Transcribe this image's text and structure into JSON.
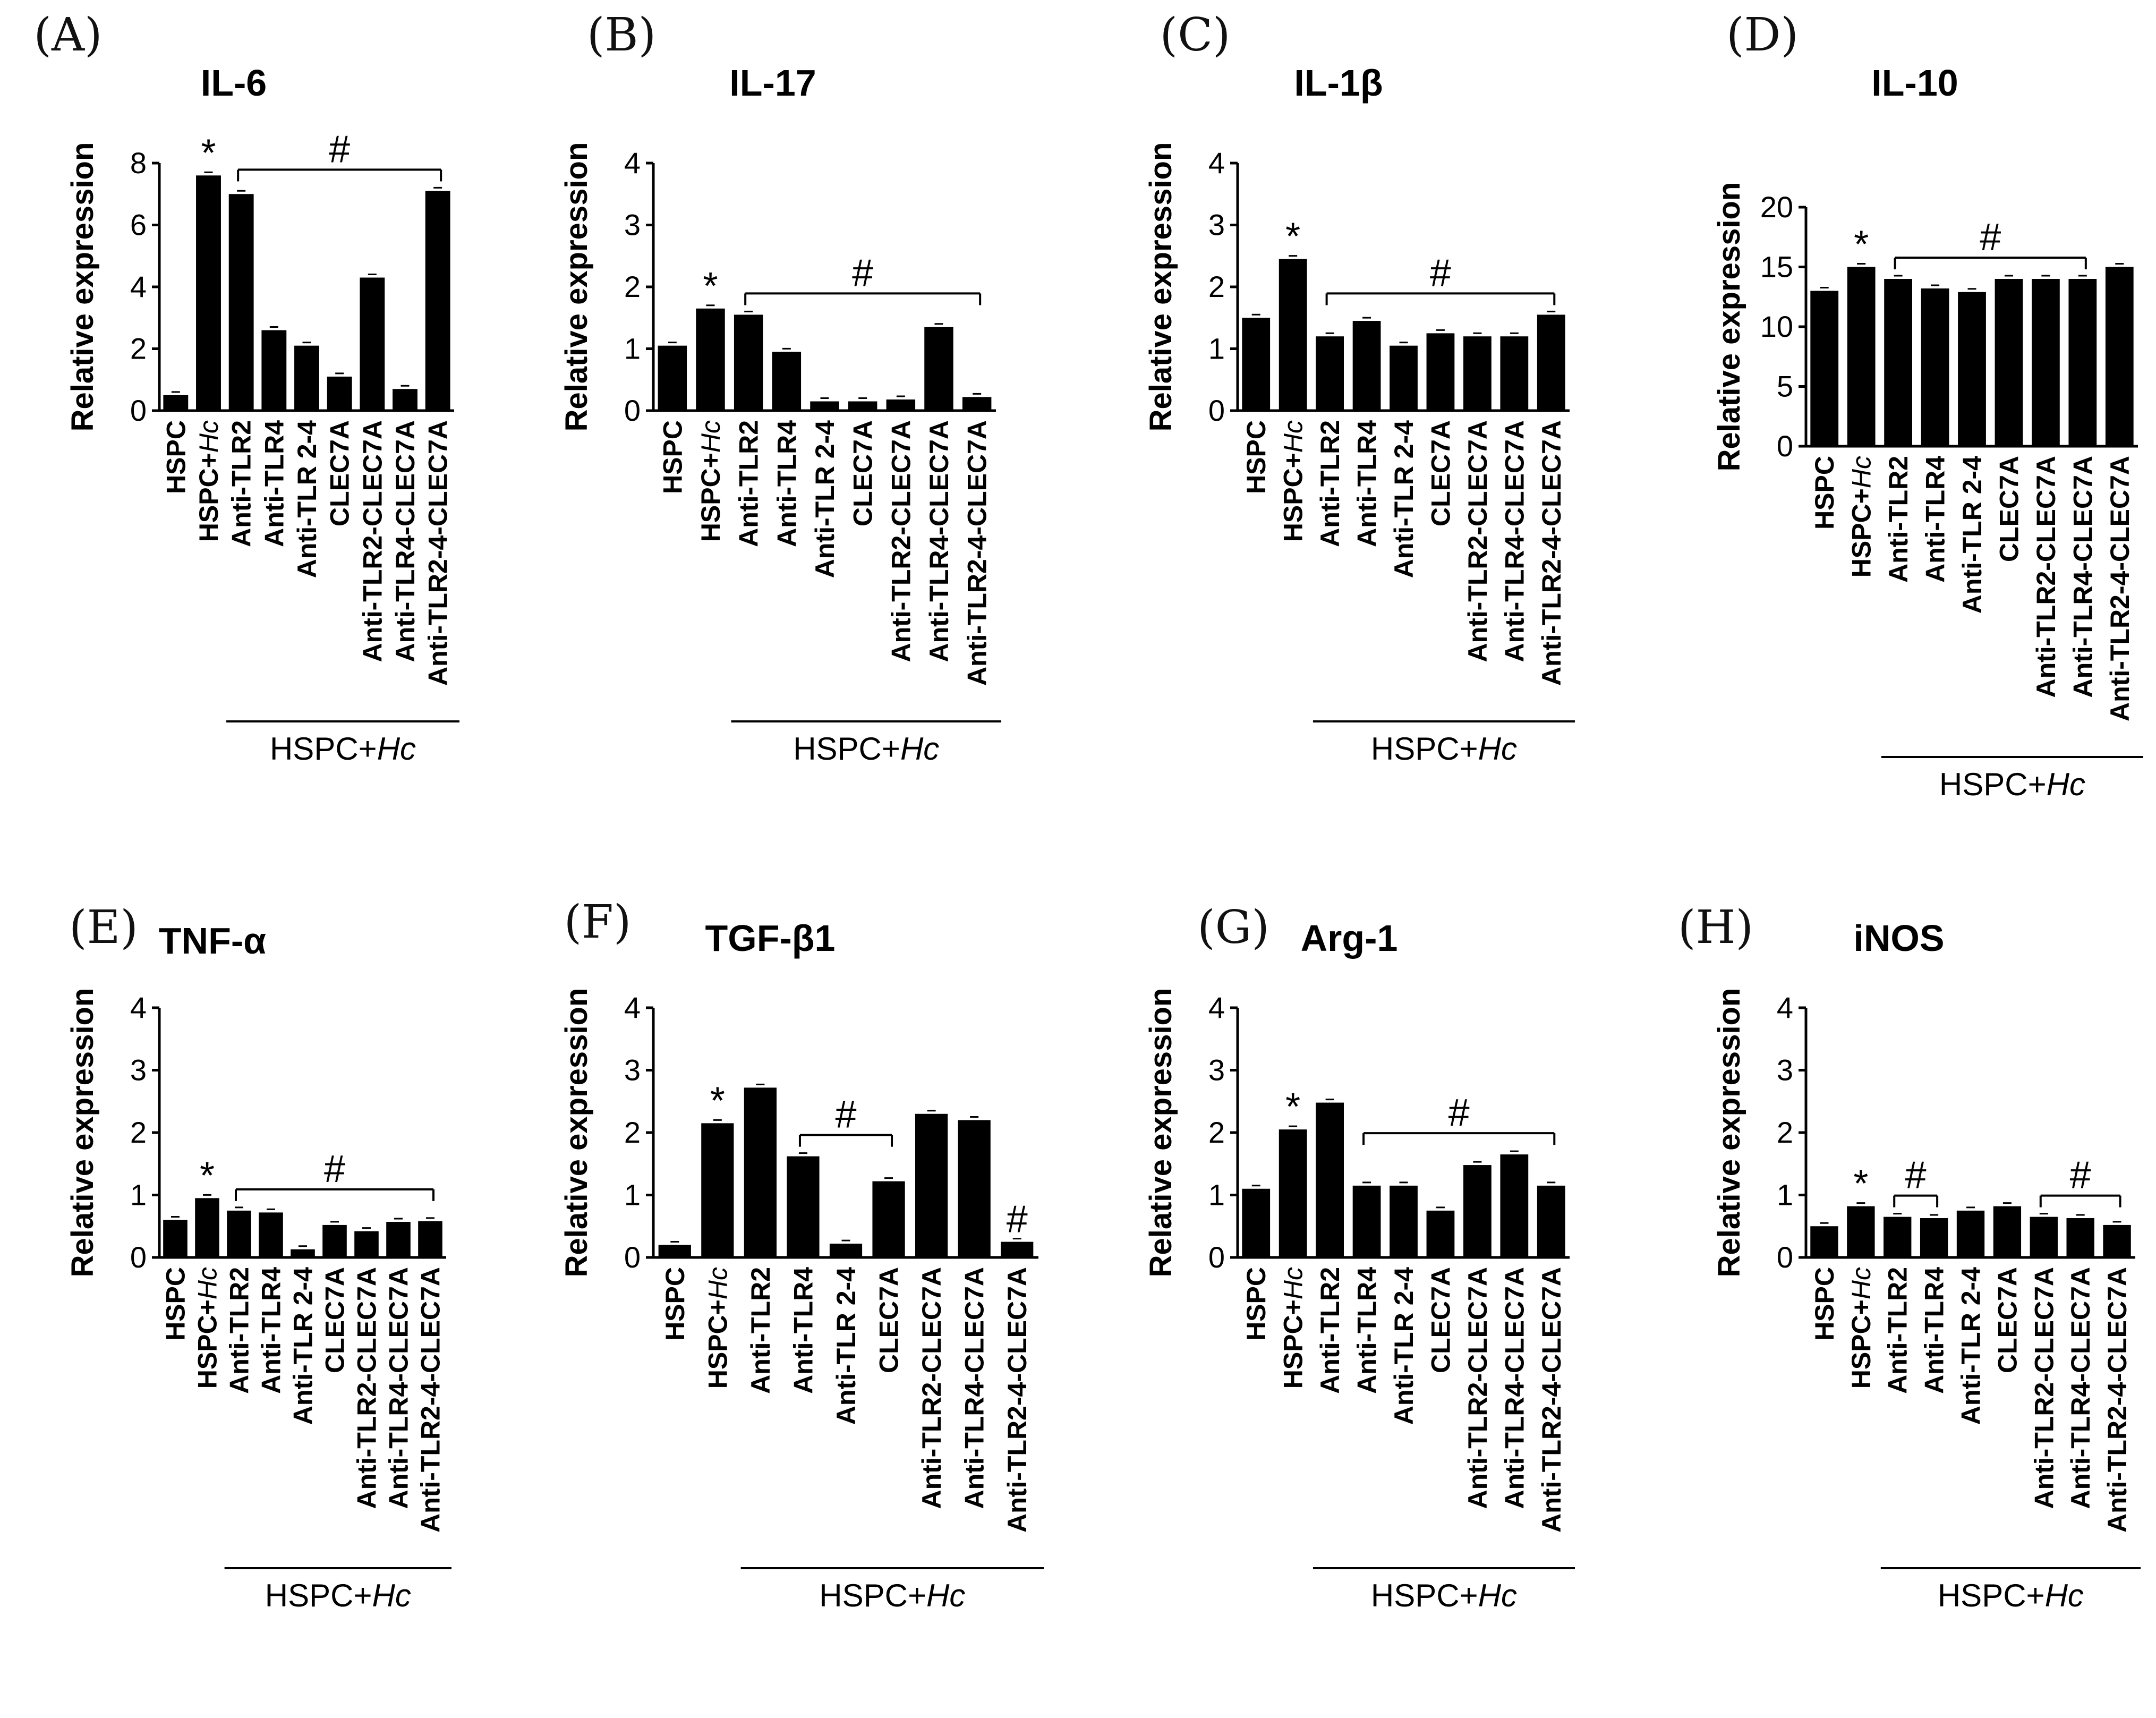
{
  "group_label": "HSPC+",
  "group_label_italic": "Hc",
  "marker_symbols": {
    "significant_vs_hspc": "*",
    "significant_vs_infected": "#"
  },
  "chart_data": [
    {
      "panel": "(A)",
      "type": "bar",
      "title": "IL-6",
      "ylabel": "Relative expression",
      "ylim": [
        0,
        8
      ],
      "yticks": [
        0,
        2,
        4,
        6,
        8
      ],
      "categories": [
        "HSPC",
        "HSPC+Hc",
        "Anti-TLR2",
        "Anti-TLR4",
        "Anti-TLR 2-4",
        "CLEC7A",
        "Anti-TLR2-CLEC7A",
        "Anti-TLR4-CLEC7A",
        "Anti-TLR2-4-CLEC7A"
      ],
      "values": [
        0.5,
        7.6,
        7.0,
        2.6,
        2.1,
        1.1,
        4.3,
        0.7,
        7.1
      ],
      "star_on": [
        1
      ],
      "hash_brackets": [
        {
          "from": 2,
          "to": 8
        }
      ],
      "hash_single": []
    },
    {
      "panel": "(B)",
      "type": "bar",
      "title": "IL-17",
      "ylabel": "Relative expression",
      "ylim": [
        0,
        4
      ],
      "yticks": [
        0,
        1,
        2,
        3,
        4
      ],
      "categories": [
        "HSPC",
        "HSPC+Hc",
        "Anti-TLR2",
        "Anti-TLR4",
        "Anti-TLR 2-4",
        "CLEC7A",
        "Anti-TLR2-CLEC7A",
        "Anti-TLR4-CLEC7A",
        "Anti-TLR2-4-CLEC7A"
      ],
      "values": [
        1.05,
        1.65,
        1.55,
        0.95,
        0.15,
        0.15,
        0.18,
        1.35,
        0.22
      ],
      "star_on": [
        1
      ],
      "hash_brackets": [
        {
          "from": 2,
          "to": 8
        }
      ],
      "hash_single": []
    },
    {
      "panel": "(C)",
      "type": "bar",
      "title": "IL-1β",
      "ylabel": "Relative expression",
      "ylim": [
        0,
        4
      ],
      "yticks": [
        0,
        1,
        2,
        3,
        4
      ],
      "categories": [
        "HSPC",
        "HSPC+Hc",
        "Anti-TLR2",
        "Anti-TLR4",
        "Anti-TLR 2-4",
        "CLEC7A",
        "Anti-TLR2-CLEC7A",
        "Anti-TLR4-CLEC7A",
        "Anti-TLR2-4-CLEC7A"
      ],
      "values": [
        1.5,
        2.45,
        1.2,
        1.45,
        1.05,
        1.25,
        1.2,
        1.2,
        1.55
      ],
      "star_on": [
        1
      ],
      "hash_brackets": [
        {
          "from": 2,
          "to": 8
        }
      ],
      "hash_single": []
    },
    {
      "panel": "(D)",
      "type": "bar",
      "title": "IL-10",
      "ylabel": "Relative expression",
      "ylim": [
        0,
        20
      ],
      "yticks": [
        0,
        5,
        10,
        15,
        20
      ],
      "categories": [
        "HSPC",
        "HSPC+Hc",
        "Anti-TLR2",
        "Anti-TLR4",
        "Anti-TLR 2-4",
        "CLEC7A",
        "Anti-TLR2-CLEC7A",
        "Anti-TLR4-CLEC7A",
        "Anti-TLR2-4-CLEC7A"
      ],
      "values": [
        13.0,
        15.0,
        14.0,
        13.2,
        12.9,
        14.0,
        14.0,
        14.0,
        15.0
      ],
      "star_on": [
        1
      ],
      "hash_brackets": [
        {
          "from": 2,
          "to": 7
        }
      ],
      "hash_single": []
    },
    {
      "panel": "(E)",
      "type": "bar",
      "title": "TNF-α",
      "ylabel": "Relative expression",
      "ylim": [
        0,
        4
      ],
      "yticks": [
        0,
        1,
        2,
        3,
        4
      ],
      "categories": [
        "HSPC",
        "HSPC+Hc",
        "Anti-TLR2",
        "Anti-TLR4",
        "Anti-TLR 2-4",
        "CLEC7A",
        "Anti-TLR2-CLEC7A",
        "Anti-TLR4-CLEC7A",
        "Anti-TLR2-4-CLEC7A"
      ],
      "values": [
        0.6,
        0.95,
        0.75,
        0.72,
        0.13,
        0.52,
        0.42,
        0.57,
        0.58
      ],
      "star_on": [
        1
      ],
      "hash_brackets": [
        {
          "from": 2,
          "to": 8
        }
      ],
      "hash_single": []
    },
    {
      "panel": "(F)",
      "type": "bar",
      "title": "TGF-β1",
      "ylabel": "Relative expression",
      "ylim": [
        0,
        4
      ],
      "yticks": [
        0,
        1,
        2,
        3,
        4
      ],
      "categories": [
        "HSPC",
        "HSPC+Hc",
        "Anti-TLR2",
        "Anti-TLR4",
        "Anti-TLR 2-4",
        "CLEC7A",
        "Anti-TLR2-CLEC7A",
        "Anti-TLR4-CLEC7A",
        "Anti-TLR2-4-CLEC7A"
      ],
      "values": [
        0.2,
        2.15,
        2.72,
        1.62,
        0.22,
        1.22,
        2.3,
        2.2,
        0.25
      ],
      "star_on": [
        1
      ],
      "hash_brackets": [
        {
          "from": 3,
          "to": 5
        }
      ],
      "hash_single": [
        8
      ]
    },
    {
      "panel": "(G)",
      "type": "bar",
      "title": "Arg-1",
      "ylabel": "Relative expression",
      "ylim": [
        0,
        4
      ],
      "yticks": [
        0,
        1,
        2,
        3,
        4
      ],
      "categories": [
        "HSPC",
        "HSPC+Hc",
        "Anti-TLR2",
        "Anti-TLR4",
        "Anti-TLR 2-4",
        "CLEC7A",
        "Anti-TLR2-CLEC7A",
        "Anti-TLR4-CLEC7A",
        "Anti-TLR2-4-CLEC7A"
      ],
      "values": [
        1.1,
        2.05,
        2.48,
        1.15,
        1.15,
        0.75,
        1.48,
        1.65,
        1.15
      ],
      "star_on": [
        1
      ],
      "hash_brackets": [
        {
          "from": 3,
          "to": 8
        }
      ],
      "hash_single": []
    },
    {
      "panel": "(H)",
      "type": "bar",
      "title": "iNOS",
      "ylabel": "Relative expression",
      "ylim": [
        0,
        4
      ],
      "yticks": [
        0,
        1,
        2,
        3,
        4
      ],
      "categories": [
        "HSPC",
        "HSPC+Hc",
        "Anti-TLR2",
        "Anti-TLR4",
        "Anti-TLR 2-4",
        "CLEC7A",
        "Anti-TLR2-CLEC7A",
        "Anti-TLR4-CLEC7A",
        "Anti-TLR2-4-CLEC7A"
      ],
      "values": [
        0.5,
        0.82,
        0.65,
        0.63,
        0.75,
        0.82,
        0.65,
        0.63,
        0.52
      ],
      "star_on": [
        1
      ],
      "hash_brackets": [
        {
          "from": 2,
          "to": 3
        },
        {
          "from": 6,
          "to": 8
        }
      ],
      "hash_single": []
    }
  ]
}
